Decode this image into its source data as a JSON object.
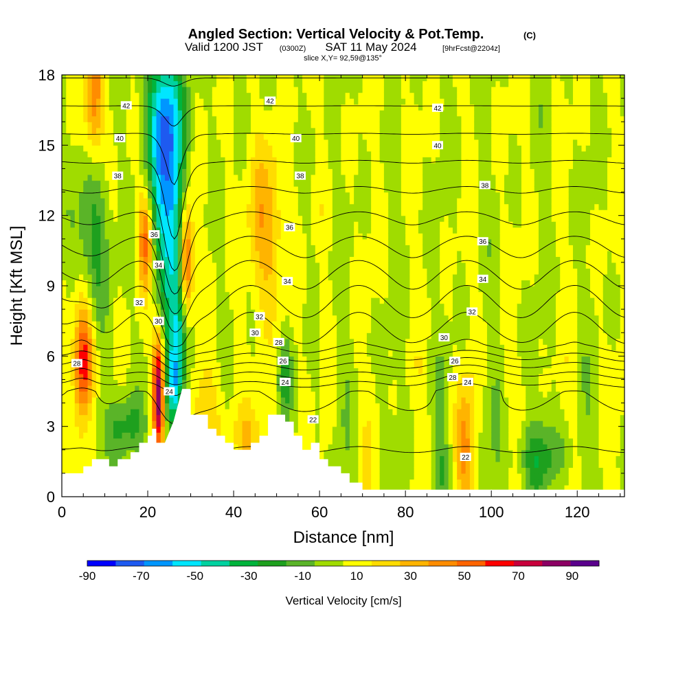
{
  "title": {
    "main": "Angled Section: Vertical Velocity & Pot.Temp.",
    "main_unit": "(C)",
    "valid_prefix": "Valid 1200 JST",
    "valid_utc": "(0300Z)",
    "valid_date": "SAT 11 May 2024",
    "forecast": "[9hrFcst@2204z]",
    "slice": "slice X,Y= 92,59@135°"
  },
  "colors": {
    "bins": [
      "#0000ff",
      "#1e5af0",
      "#0096ff",
      "#00e6ff",
      "#00d2a0",
      "#00b43c",
      "#1ea01e",
      "#5ab428",
      "#a0dc00",
      "#ffff00",
      "#ffdc00",
      "#ffb400",
      "#ff8c00",
      "#ff6400",
      "#ff0000",
      "#c8003c",
      "#8c0064",
      "#5a008c"
    ],
    "terrain": "#ffffff",
    "contour": "#000000"
  },
  "chart_data": {
    "type": "heatmap",
    "xlabel": "Distance [nm]",
    "ylabel": "Height [Kft MSL]",
    "xlim": [
      0,
      131
    ],
    "ylim": [
      0,
      18
    ],
    "xticks": [
      "0",
      "20",
      "40",
      "60",
      "80",
      "100",
      "120"
    ],
    "yticks": [
      "0",
      "3",
      "6",
      "9",
      "12",
      "15",
      "18"
    ],
    "colorbar": {
      "label": "Vertical Velocity [cm/s]",
      "tick_labels": [
        "-90",
        "-70",
        "-50",
        "-30",
        "-10",
        "10",
        "30",
        "50",
        "70",
        "90"
      ],
      "range": [
        -90,
        100
      ]
    },
    "velocity_features": [
      {
        "x": 24.5,
        "z": 13.5,
        "w": -55,
        "sx": 2.6,
        "sz": 3.2
      },
      {
        "x": 23.5,
        "z": 16.5,
        "w": -35,
        "sx": 3.0,
        "sz": 2.0
      },
      {
        "x": 26.5,
        "z": 9.5,
        "w": -30,
        "sx": 2.2,
        "sz": 2.8
      },
      {
        "x": 27.5,
        "z": 6.5,
        "w": -35,
        "sx": 1.6,
        "sz": 1.5
      },
      {
        "x": 26.0,
        "z": 4.5,
        "w": -45,
        "sx": 1.4,
        "sz": 1.2
      },
      {
        "x": 29.0,
        "z": 10.0,
        "w": 65,
        "sx": 1.2,
        "sz": 2.0
      },
      {
        "x": 19.5,
        "z": 11.0,
        "w": 45,
        "sx": 1.2,
        "sz": 1.5
      },
      {
        "x": 7.5,
        "z": 17.0,
        "w": 40,
        "sx": 1.6,
        "sz": 2.0
      },
      {
        "x": 5.0,
        "z": 5.5,
        "w": 65,
        "sx": 1.6,
        "sz": 2.0
      },
      {
        "x": 22.5,
        "z": 4.5,
        "w": 80,
        "sx": 1.0,
        "sz": 1.8
      },
      {
        "x": 7.0,
        "z": 11.0,
        "w": -25,
        "sx": 2.8,
        "sz": 2.6
      },
      {
        "x": 6.0,
        "z": 3.5,
        "w": -18,
        "sx": 2.0,
        "sz": 1.2
      },
      {
        "x": 15.0,
        "z": 3.0,
        "w": -22,
        "sx": 3.5,
        "sz": 1.0
      },
      {
        "x": 47.5,
        "z": 11.5,
        "w": 28,
        "sx": 3.0,
        "sz": 2.5
      },
      {
        "x": 52.0,
        "z": 5.0,
        "w": -22,
        "sx": 1.2,
        "sz": 1.2
      },
      {
        "x": 33.0,
        "z": 3.5,
        "w": 22,
        "sx": 2.5,
        "sz": 1.5
      },
      {
        "x": 44.0,
        "z": 2.5,
        "w": 20,
        "sx": 3.0,
        "sz": 1.0
      },
      {
        "x": 94.0,
        "z": 2.0,
        "w": 30,
        "sx": 1.5,
        "sz": 1.8
      },
      {
        "x": 88.5,
        "z": 1.2,
        "w": -15,
        "sx": 1.5,
        "sz": 1.0
      },
      {
        "x": 111.0,
        "z": 1.7,
        "w": -22,
        "sx": 5.0,
        "sz": 1.0
      }
    ],
    "theta_contour_labels": [
      {
        "v": "42",
        "x": 15.0,
        "z": 16.7
      },
      {
        "v": "42",
        "x": 48.5,
        "z": 16.9
      },
      {
        "v": "42",
        "x": 87.5,
        "z": 16.6
      },
      {
        "v": "40",
        "x": 13.5,
        "z": 15.3
      },
      {
        "v": "40",
        "x": 54.5,
        "z": 15.3
      },
      {
        "v": "40",
        "x": 87.5,
        "z": 15.0
      },
      {
        "v": "38",
        "x": 13.0,
        "z": 13.7
      },
      {
        "v": "38",
        "x": 55.5,
        "z": 13.7
      },
      {
        "v": "38",
        "x": 98.5,
        "z": 13.3
      },
      {
        "v": "36",
        "x": 21.5,
        "z": 11.2
      },
      {
        "v": "36",
        "x": 53.0,
        "z": 11.5
      },
      {
        "v": "36",
        "x": 98.0,
        "z": 10.9
      },
      {
        "v": "34",
        "x": 22.5,
        "z": 9.9
      },
      {
        "v": "34",
        "x": 52.5,
        "z": 9.2
      },
      {
        "v": "34",
        "x": 98.0,
        "z": 9.3
      },
      {
        "v": "32",
        "x": 18.0,
        "z": 8.3
      },
      {
        "v": "32",
        "x": 46.0,
        "z": 7.7
      },
      {
        "v": "32",
        "x": 95.5,
        "z": 7.9
      },
      {
        "v": "30",
        "x": 22.5,
        "z": 7.5
      },
      {
        "v": "30",
        "x": 45.0,
        "z": 7.0
      },
      {
        "v": "30",
        "x": 89.0,
        "z": 6.8
      },
      {
        "v": "28",
        "x": 3.5,
        "z": 5.7
      },
      {
        "v": "28",
        "x": 50.5,
        "z": 6.6
      },
      {
        "v": "28",
        "x": 91.0,
        "z": 5.1
      },
      {
        "v": "26",
        "x": 51.5,
        "z": 5.8
      },
      {
        "v": "26",
        "x": 91.5,
        "z": 5.8
      },
      {
        "v": "24",
        "x": 52.0,
        "z": 4.9
      },
      {
        "v": "24",
        "x": 94.5,
        "z": 4.9
      },
      {
        "v": "24",
        "x": 25.0,
        "z": 4.5
      },
      {
        "v": "22",
        "x": 58.5,
        "z": 3.3
      },
      {
        "v": "22",
        "x": 94.0,
        "z": 1.7
      }
    ]
  }
}
